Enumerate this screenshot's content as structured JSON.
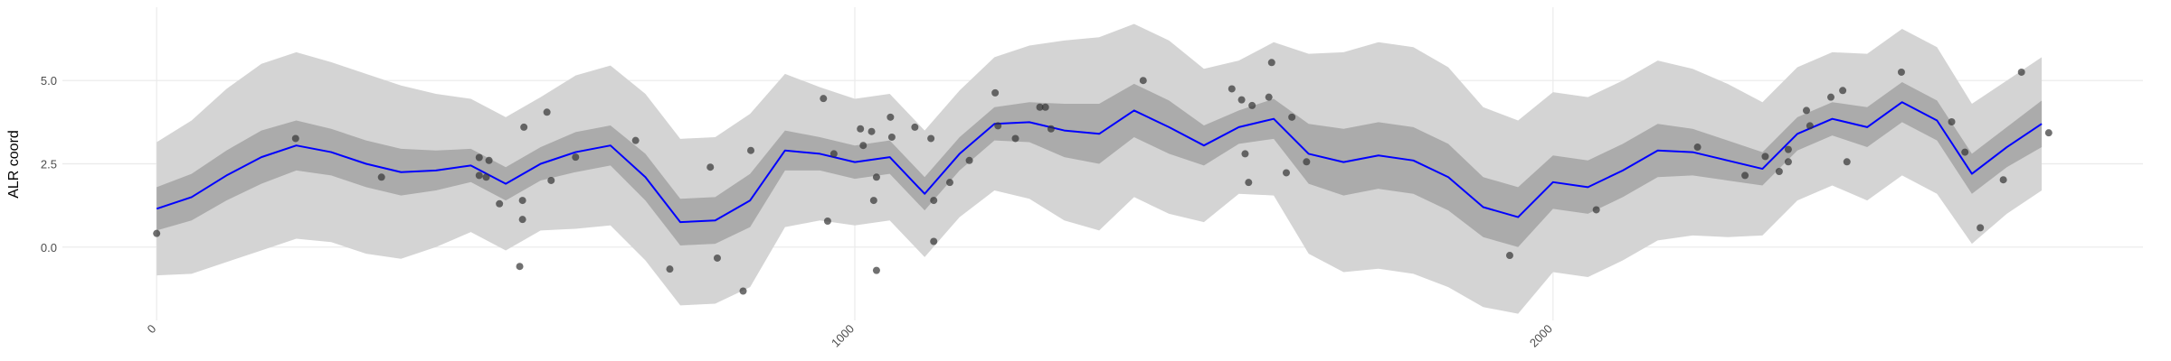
{
  "chart_data": {
    "type": "band-line",
    "y_label": "ALR coord",
    "xlim": [
      -135,
      2845
    ],
    "ylim": [
      -2.2,
      7.2
    ],
    "xticks": [
      0,
      1000,
      2000
    ],
    "yticks": [
      {
        "value": 0,
        "label": "0.0"
      },
      {
        "value": 2.5,
        "label": "2.5"
      },
      {
        "value": 5,
        "label": "5.0"
      }
    ],
    "grid": true,
    "x": [
      0,
      50,
      100,
      150,
      200,
      250,
      300,
      350,
      400,
      450,
      500,
      550,
      600,
      650,
      700,
      750,
      800,
      850,
      900,
      950,
      1000,
      1050,
      1100,
      1150,
      1200,
      1250,
      1300,
      1350,
      1400,
      1450,
      1500,
      1550,
      1600,
      1650,
      1700,
      1750,
      1800,
      1850,
      1900,
      1950,
      2000,
      2050,
      2100,
      2150,
      2200,
      2250,
      2300,
      2350,
      2400,
      2450,
      2500,
      2550,
      2600,
      2650,
      2700
    ],
    "bands": [
      {
        "color": "#d4d4d4",
        "lower": [
          -0.85,
          -0.8,
          -0.45,
          -0.1,
          0.25,
          0.15,
          -0.2,
          -0.35,
          0.0,
          0.45,
          -0.1,
          0.5,
          0.55,
          0.65,
          -0.4,
          -1.75,
          -1.7,
          -1.2,
          0.6,
          0.8,
          0.65,
          0.8,
          -0.3,
          0.9,
          1.7,
          1.45,
          0.8,
          0.5,
          1.5,
          1.0,
          0.75,
          1.6,
          1.55,
          -0.2,
          -0.75,
          -0.65,
          -0.8,
          -1.2,
          -1.8,
          -2.0,
          -0.75,
          -0.9,
          -0.4,
          0.2,
          0.35,
          0.3,
          0.35,
          1.4,
          1.85,
          1.4,
          2.15,
          1.6,
          0.1,
          1.0,
          1.7
        ],
        "upper": [
          3.15,
          3.8,
          4.75,
          5.5,
          5.85,
          5.55,
          5.2,
          4.85,
          4.6,
          4.45,
          3.9,
          4.5,
          5.15,
          5.45,
          4.6,
          3.25,
          3.3,
          4.0,
          5.2,
          4.8,
          4.45,
          4.6,
          3.5,
          4.7,
          5.7,
          6.05,
          6.2,
          6.3,
          6.7,
          6.2,
          5.35,
          5.6,
          6.15,
          5.8,
          5.85,
          6.15,
          6.0,
          5.4,
          4.2,
          3.8,
          4.65,
          4.5,
          5.0,
          5.6,
          5.35,
          4.9,
          4.35,
          5.4,
          5.85,
          5.8,
          6.55,
          6.0,
          4.3,
          5.0,
          5.7
        ]
      },
      {
        "color": "#ababab",
        "lower": [
          0.5,
          0.8,
          1.4,
          1.9,
          2.3,
          2.15,
          1.8,
          1.55,
          1.7,
          1.95,
          1.4,
          2.0,
          2.25,
          2.45,
          1.4,
          0.05,
          0.1,
          0.6,
          2.3,
          2.3,
          2.05,
          2.2,
          1.1,
          2.3,
          3.2,
          3.15,
          2.7,
          2.5,
          3.3,
          2.8,
          2.45,
          3.1,
          3.25,
          1.9,
          1.55,
          1.75,
          1.6,
          1.1,
          0.3,
          0.0,
          1.15,
          1.0,
          1.5,
          2.1,
          2.15,
          2.0,
          1.85,
          2.9,
          3.35,
          3.0,
          3.75,
          3.2,
          1.6,
          2.4,
          3.0
        ],
        "upper": [
          1.8,
          2.2,
          2.9,
          3.5,
          3.8,
          3.55,
          3.2,
          2.95,
          2.9,
          2.95,
          2.4,
          3.0,
          3.45,
          3.65,
          2.8,
          1.45,
          1.5,
          2.2,
          3.5,
          3.3,
          3.05,
          3.2,
          2.1,
          3.3,
          4.2,
          4.35,
          4.3,
          4.3,
          4.9,
          4.4,
          3.65,
          4.1,
          4.45,
          3.7,
          3.55,
          3.75,
          3.6,
          3.1,
          2.1,
          1.8,
          2.75,
          2.6,
          3.1,
          3.7,
          3.55,
          3.2,
          2.85,
          3.9,
          4.35,
          4.2,
          4.95,
          4.4,
          2.8,
          3.6,
          4.4
        ]
      }
    ],
    "series": [
      {
        "color": "#0000ff",
        "values": [
          1.15,
          1.5,
          2.15,
          2.7,
          3.05,
          2.85,
          2.5,
          2.25,
          2.3,
          2.45,
          1.9,
          2.5,
          2.85,
          3.05,
          2.1,
          0.75,
          0.8,
          1.4,
          2.9,
          2.8,
          2.55,
          2.7,
          1.6,
          2.8,
          3.7,
          3.75,
          3.5,
          3.4,
          4.1,
          3.6,
          3.05,
          3.6,
          3.85,
          2.8,
          2.55,
          2.75,
          2.6,
          2.1,
          1.2,
          0.9,
          1.95,
          1.8,
          2.3,
          2.9,
          2.85,
          2.6,
          2.35,
          3.4,
          3.85,
          3.6,
          4.35,
          3.8,
          2.2,
          3.0,
          3.7
        ]
      }
    ],
    "points": {
      "color": "#333333",
      "x": [
        0,
        199,
        322,
        462,
        462,
        476,
        472,
        491,
        524,
        526,
        524,
        520,
        559,
        565,
        600,
        686,
        735,
        793,
        803,
        840,
        851,
        955,
        961,
        970,
        1008,
        1012,
        1024,
        1027,
        1031,
        1031,
        1051,
        1053,
        1086,
        1109,
        1113,
        1113,
        1136,
        1164,
        1201,
        1205,
        1230,
        1265,
        1273,
        1281,
        1413,
        1540,
        1554,
        1564,
        1559,
        1569,
        1593,
        1597,
        1626,
        1618,
        1647,
        1938,
        2062,
        2207,
        2275,
        2304,
        2324,
        2337,
        2337,
        2363,
        2368,
        2398,
        2415,
        2421,
        2499,
        2571,
        2590,
        2612,
        2645,
        2671,
        2710
      ],
      "y": [
        0.41,
        3.26,
        2.1,
        2.69,
        2.15,
        2.6,
        2.1,
        1.3,
        1.4,
        3.6,
        0.83,
        -0.58,
        4.05,
        2.0,
        2.7,
        3.2,
        -0.66,
        2.4,
        -0.33,
        -1.32,
        2.9,
        4.46,
        0.78,
        2.8,
        3.55,
        3.05,
        3.47,
        1.4,
        2.1,
        -0.7,
        3.9,
        3.3,
        3.6,
        3.26,
        1.4,
        0.17,
        1.94,
        2.6,
        4.63,
        3.64,
        3.26,
        4.2,
        4.2,
        3.55,
        5.0,
        4.75,
        4.42,
        1.94,
        2.8,
        4.25,
        4.5,
        5.54,
        3.9,
        2.23,
        2.56,
        -0.25,
        1.12,
        3.0,
        2.15,
        2.72,
        2.27,
        2.93,
        2.56,
        4.1,
        3.64,
        4.5,
        4.7,
        2.56,
        5.25,
        3.76,
        2.85,
        0.58,
        2.02,
        5.25,
        3.43
      ]
    }
  }
}
